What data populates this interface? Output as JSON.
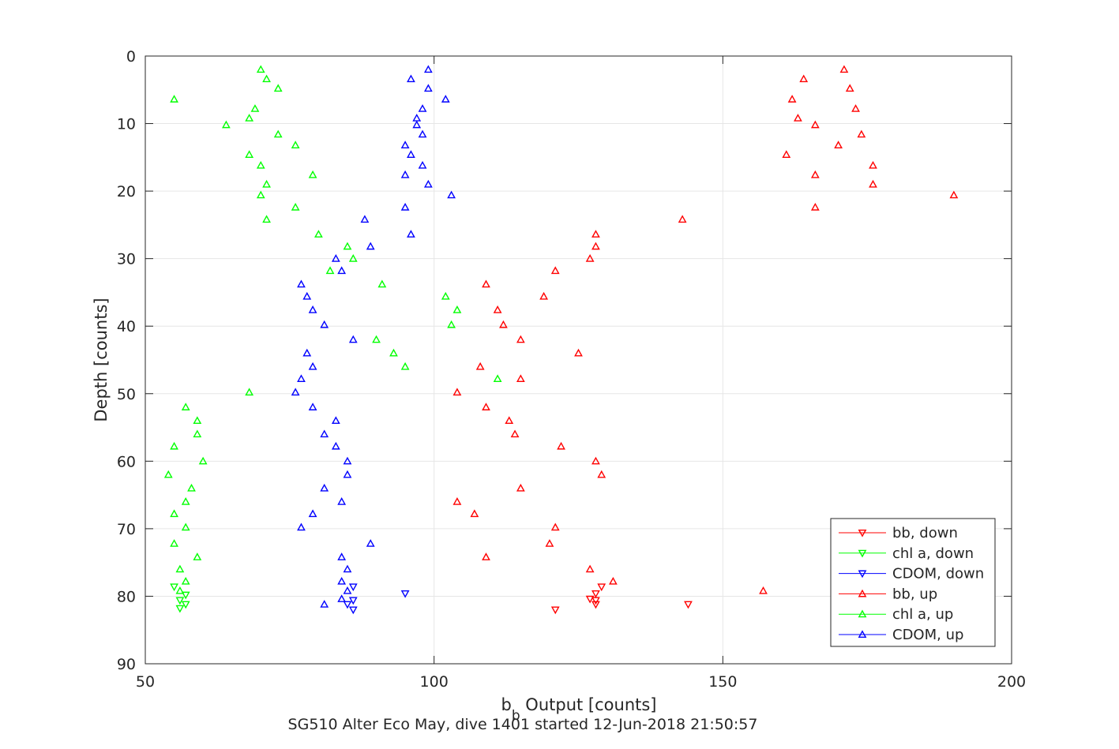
{
  "chart_data": {
    "type": "scatter",
    "xlabel_main": "b",
    "xlabel_sub": "b",
    "xlabel_rest": " Output [counts]",
    "ylabel": "Depth [counts]",
    "caption": "SG510 Alter Eco May, dive 1401 started 12-Jun-2018 21:50:57",
    "xlim": [
      50,
      200
    ],
    "ylim": [
      0,
      90
    ],
    "y_reversed": true,
    "xticks": [
      50,
      100,
      150,
      200
    ],
    "yticks": [
      0,
      10,
      20,
      30,
      40,
      50,
      60,
      70,
      80,
      90
    ],
    "grid": true,
    "legend_placement": "bottom-right",
    "series": [
      {
        "name": "bb, down",
        "color": "#ff0000",
        "marker": "triangle-down",
        "points": [
          [
            128,
            79.6
          ],
          [
            129,
            78.6
          ],
          [
            128,
            80.6
          ],
          [
            127,
            80.4
          ],
          [
            128,
            81.2
          ],
          [
            121,
            82.0
          ],
          [
            144,
            81.2
          ]
        ]
      },
      {
        "name": "chl a, down",
        "color": "#00ff00",
        "marker": "triangle-down",
        "points": [
          [
            55,
            78.6
          ],
          [
            57,
            79.8
          ],
          [
            56,
            80.6
          ],
          [
            57,
            81.2
          ],
          [
            56,
            81.8
          ]
        ]
      },
      {
        "name": "CDOM, down",
        "color": "#0000ff",
        "marker": "triangle-down",
        "points": [
          [
            95,
            79.6
          ],
          [
            86,
            78.6
          ],
          [
            86,
            80.6
          ],
          [
            85,
            81.2
          ],
          [
            86,
            82.0
          ]
        ]
      },
      {
        "name": "bb, up",
        "color": "#ff0000",
        "marker": "triangle-up",
        "points": [
          [
            171,
            2
          ],
          [
            164,
            3.4
          ],
          [
            172,
            4.8
          ],
          [
            162,
            6.4
          ],
          [
            173,
            7.8
          ],
          [
            163,
            9.2
          ],
          [
            166,
            10.2
          ],
          [
            174,
            11.6
          ],
          [
            170,
            13.2
          ],
          [
            161,
            14.6
          ],
          [
            176,
            16.2
          ],
          [
            166,
            17.6
          ],
          [
            176,
            19.0
          ],
          [
            190,
            20.6
          ],
          [
            166,
            22.4
          ],
          [
            143,
            24.2
          ],
          [
            128,
            26.4
          ],
          [
            128,
            28.2
          ],
          [
            127,
            30.0
          ],
          [
            121,
            31.8
          ],
          [
            109,
            33.8
          ],
          [
            119,
            35.6
          ],
          [
            111,
            37.6
          ],
          [
            112,
            39.8
          ],
          [
            115,
            42.0
          ],
          [
            125,
            44.0
          ],
          [
            108,
            46.0
          ],
          [
            115,
            47.8
          ],
          [
            104,
            49.8
          ],
          [
            109,
            52.0
          ],
          [
            113,
            54.0
          ],
          [
            114,
            56.0
          ],
          [
            122,
            57.8
          ],
          [
            128,
            60.0
          ],
          [
            129,
            62.0
          ],
          [
            115,
            64.0
          ],
          [
            104,
            66.0
          ],
          [
            107,
            67.8
          ],
          [
            121,
            69.8
          ],
          [
            120,
            72.2
          ],
          [
            109,
            74.2
          ],
          [
            127,
            76.0
          ],
          [
            131,
            77.8
          ],
          [
            157,
            79.2
          ]
        ]
      },
      {
        "name": "chl a, up",
        "color": "#00ff00",
        "marker": "triangle-up",
        "points": [
          [
            70,
            2
          ],
          [
            71,
            3.4
          ],
          [
            73,
            4.8
          ],
          [
            55,
            6.4
          ],
          [
            69,
            7.8
          ],
          [
            68,
            9.2
          ],
          [
            64,
            10.2
          ],
          [
            73,
            11.6
          ],
          [
            76,
            13.2
          ],
          [
            68,
            14.6
          ],
          [
            70,
            16.2
          ],
          [
            79,
            17.6
          ],
          [
            71,
            19.0
          ],
          [
            70,
            20.6
          ],
          [
            76,
            22.4
          ],
          [
            71,
            24.2
          ],
          [
            80,
            26.4
          ],
          [
            85,
            28.2
          ],
          [
            86,
            30.0
          ],
          [
            82,
            31.8
          ],
          [
            91,
            33.8
          ],
          [
            102,
            35.6
          ],
          [
            104,
            37.6
          ],
          [
            103,
            39.8
          ],
          [
            90,
            42.0
          ],
          [
            93,
            44.0
          ],
          [
            95,
            46.0
          ],
          [
            111,
            47.8
          ],
          [
            68,
            49.8
          ],
          [
            57,
            52.0
          ],
          [
            59,
            54.0
          ],
          [
            59,
            56.0
          ],
          [
            55,
            57.8
          ],
          [
            60,
            60.0
          ],
          [
            54,
            62.0
          ],
          [
            58,
            64.0
          ],
          [
            57,
            66.0
          ],
          [
            55,
            67.8
          ],
          [
            57,
            69.8
          ],
          [
            55,
            72.2
          ],
          [
            59,
            74.2
          ],
          [
            56,
            76.0
          ],
          [
            57,
            77.8
          ],
          [
            56,
            79.2
          ]
        ]
      },
      {
        "name": "CDOM, up",
        "color": "#0000ff",
        "marker": "triangle-up",
        "points": [
          [
            99,
            2
          ],
          [
            96,
            3.4
          ],
          [
            99,
            4.8
          ],
          [
            102,
            6.4
          ],
          [
            98,
            7.8
          ],
          [
            97,
            9.2
          ],
          [
            97,
            10.2
          ],
          [
            98,
            11.6
          ],
          [
            95,
            13.2
          ],
          [
            96,
            14.6
          ],
          [
            98,
            16.2
          ],
          [
            95,
            17.6
          ],
          [
            99,
            19.0
          ],
          [
            103,
            20.6
          ],
          [
            95,
            22.4
          ],
          [
            88,
            24.2
          ],
          [
            96,
            26.4
          ],
          [
            89,
            28.2
          ],
          [
            83,
            30.0
          ],
          [
            84,
            31.8
          ],
          [
            77,
            33.8
          ],
          [
            78,
            35.6
          ],
          [
            79,
            37.6
          ],
          [
            81,
            39.8
          ],
          [
            86,
            42.0
          ],
          [
            78,
            44.0
          ],
          [
            79,
            46.0
          ],
          [
            77,
            47.8
          ],
          [
            76,
            49.8
          ],
          [
            79,
            52.0
          ],
          [
            83,
            54.0
          ],
          [
            81,
            56.0
          ],
          [
            83,
            57.8
          ],
          [
            85,
            60.0
          ],
          [
            85,
            62.0
          ],
          [
            81,
            64.0
          ],
          [
            84,
            66.0
          ],
          [
            79,
            67.8
          ],
          [
            77,
            69.8
          ],
          [
            89,
            72.2
          ],
          [
            84,
            74.2
          ],
          [
            85,
            76.0
          ],
          [
            84,
            77.8
          ],
          [
            85,
            79.2
          ],
          [
            84,
            80.4
          ],
          [
            81,
            81.2
          ]
        ]
      }
    ]
  }
}
